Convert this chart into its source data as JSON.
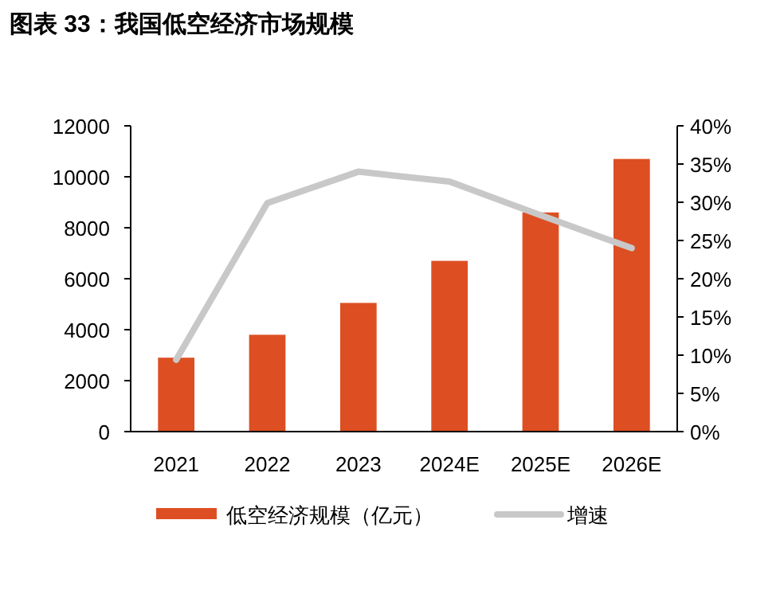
{
  "chart_data": {
    "type": "bar",
    "title": "图表 33：我国低空经济市场规模",
    "categories": [
      "2021",
      "2022",
      "2023",
      "2024E",
      "2025E",
      "2026E"
    ],
    "series": [
      {
        "name": "低空经济规模（亿元）",
        "color": "#dd4f22",
        "values": [
          2900,
          3800,
          5050,
          6700,
          8600,
          10700
        ]
      },
      {
        "name": "增速",
        "type": "line",
        "axis": "y2",
        "color": "#c8c8c8",
        "values": [
          9.4,
          29.9,
          34.0,
          32.7,
          28.3,
          24.0
        ]
      }
    ],
    "ylim": [
      0,
      12000
    ],
    "yticks": [
      0,
      2000,
      4000,
      6000,
      8000,
      10000,
      12000
    ],
    "y2lim": [
      0,
      40
    ],
    "y2ticks": [
      {
        "value": 0,
        "label": "0%"
      },
      {
        "value": 5,
        "label": "5%"
      },
      {
        "value": 10,
        "label": "10%"
      },
      {
        "value": 15,
        "label": "15%"
      },
      {
        "value": 20,
        "label": "20%"
      },
      {
        "value": 25,
        "label": "25%"
      },
      {
        "value": 30,
        "label": "30%"
      },
      {
        "value": 35,
        "label": "35%"
      },
      {
        "value": 40,
        "label": "40%"
      }
    ],
    "legend": "bottom"
  }
}
